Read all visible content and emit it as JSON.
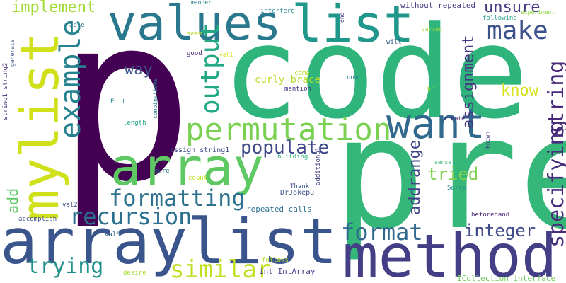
{
  "words": [
    {
      "text": "p",
      "color": "#440154"
    },
    {
      "text": "code",
      "color": "#2fb47c"
    },
    {
      "text": "pre",
      "color": "#35b779"
    },
    {
      "text": "arraylist",
      "color": "#3a548c"
    },
    {
      "text": "method",
      "color": "#433e85"
    },
    {
      "text": "mylist",
      "color": "#d0e11c"
    },
    {
      "text": "values",
      "color": "#2a788e"
    },
    {
      "text": "list",
      "color": "#1f978b"
    },
    {
      "text": "array",
      "color": "#5ec962"
    },
    {
      "text": "want",
      "color": "#31688e"
    },
    {
      "text": "permutation",
      "color": "#7ad151"
    },
    {
      "text": "example",
      "color": "#26828e"
    },
    {
      "text": "make",
      "color": "#3b528b"
    },
    {
      "text": "output",
      "color": "#22a884"
    },
    {
      "text": "formatting",
      "color": "#2c728e"
    },
    {
      "text": "recursion",
      "color": "#2d708e"
    },
    {
      "text": "format",
      "color": "#31688e"
    },
    {
      "text": "similar",
      "color": "#c2df23"
    },
    {
      "text": "trying",
      "color": "#21918c"
    },
    {
      "text": "string",
      "color": "#482878"
    },
    {
      "text": "specifying",
      "color": "#472d7b"
    },
    {
      "text": "populate",
      "color": "#3e4989"
    },
    {
      "text": "integer",
      "color": "#3e4a89"
    },
    {
      "text": "implement",
      "color": "#a2da37"
    },
    {
      "text": "unsure",
      "color": "#443a83"
    },
    {
      "text": "assignment",
      "color": "#453781"
    },
    {
      "text": "addrange",
      "color": "#3f4788"
    },
    {
      "text": "tried",
      "color": "#7fd34e"
    },
    {
      "text": "know",
      "color": "#d5e21a"
    },
    {
      "text": "way",
      "color": "#3b528b"
    },
    {
      "text": "add",
      "color": "#5ec962"
    },
    {
      "text": "curly brace",
      "color": "#b5de2b"
    },
    {
      "text": "repeated calls",
      "color": "#2d708e"
    },
    {
      "text": "int IntArray",
      "color": "#414487"
    },
    {
      "text": "ICollection interface",
      "color": "#6ece58"
    },
    {
      "text": "without repeated",
      "color": "#433e85"
    },
    {
      "text": "manner",
      "color": "#287d8e"
    },
    {
      "text": "interfere",
      "color": "#24868e"
    },
    {
      "text": "experiment",
      "color": "#8fd744"
    },
    {
      "text": "following",
      "color": "#1f9e89"
    },
    {
      "text": "able",
      "color": "#2a788e"
    },
    {
      "text": "seem",
      "color": "#b8de29"
    },
    {
      "text": "will",
      "color": "#355f8d"
    },
    {
      "text": "varied",
      "color": "#a5db36"
    },
    {
      "text": "end",
      "color": "#443983"
    },
    {
      "text": "good",
      "color": "#482475"
    },
    {
      "text": "val1",
      "color": "#d8e219"
    },
    {
      "text": "come",
      "color": "#b5de2b"
    },
    {
      "text": "now",
      "color": "#25838e"
    },
    {
      "text": "mention",
      "color": "#46327e"
    },
    {
      "text": "br",
      "color": "#b5de2b"
    },
    {
      "text": "Edit",
      "color": "#26828e"
    },
    {
      "text": "Thank",
      "color": "#3b528b"
    },
    {
      "text": "create",
      "color": "#482475"
    },
    {
      "text": "length",
      "color": "#20a386"
    },
    {
      "text": "known",
      "color": "#46307e"
    },
    {
      "text": "assign string1",
      "color": "#3e4989"
    },
    {
      "text": "building",
      "color": "#2db27d"
    },
    {
      "text": "sense",
      "color": "#3dbc74"
    },
    {
      "text": "sure",
      "color": "#2a788e"
    },
    {
      "text": "count",
      "color": "#c0df25"
    },
    {
      "text": "DrJokepu",
      "color": "#3b528b"
    },
    {
      "text": "Sorry",
      "color": "#228c8d"
    },
    {
      "text": "val2",
      "color": "#3e4a89"
    },
    {
      "text": "accomplish",
      "color": "#3e4989"
    },
    {
      "text": "val0",
      "color": "#31688e"
    },
    {
      "text": "beforehand",
      "color": "#482878"
    },
    {
      "text": "desire",
      "color": "#a8db34"
    },
    {
      "text": "follows",
      "color": "#b5de2b"
    },
    {
      "text": "combinations",
      "color": "#26828e"
    },
    {
      "text": "generate",
      "color": "#3b528b"
    },
    {
      "text": "string1 string2",
      "color": "#472f7d"
    },
    {
      "text": "additional",
      "color": "#423f85"
    }
  ]
}
